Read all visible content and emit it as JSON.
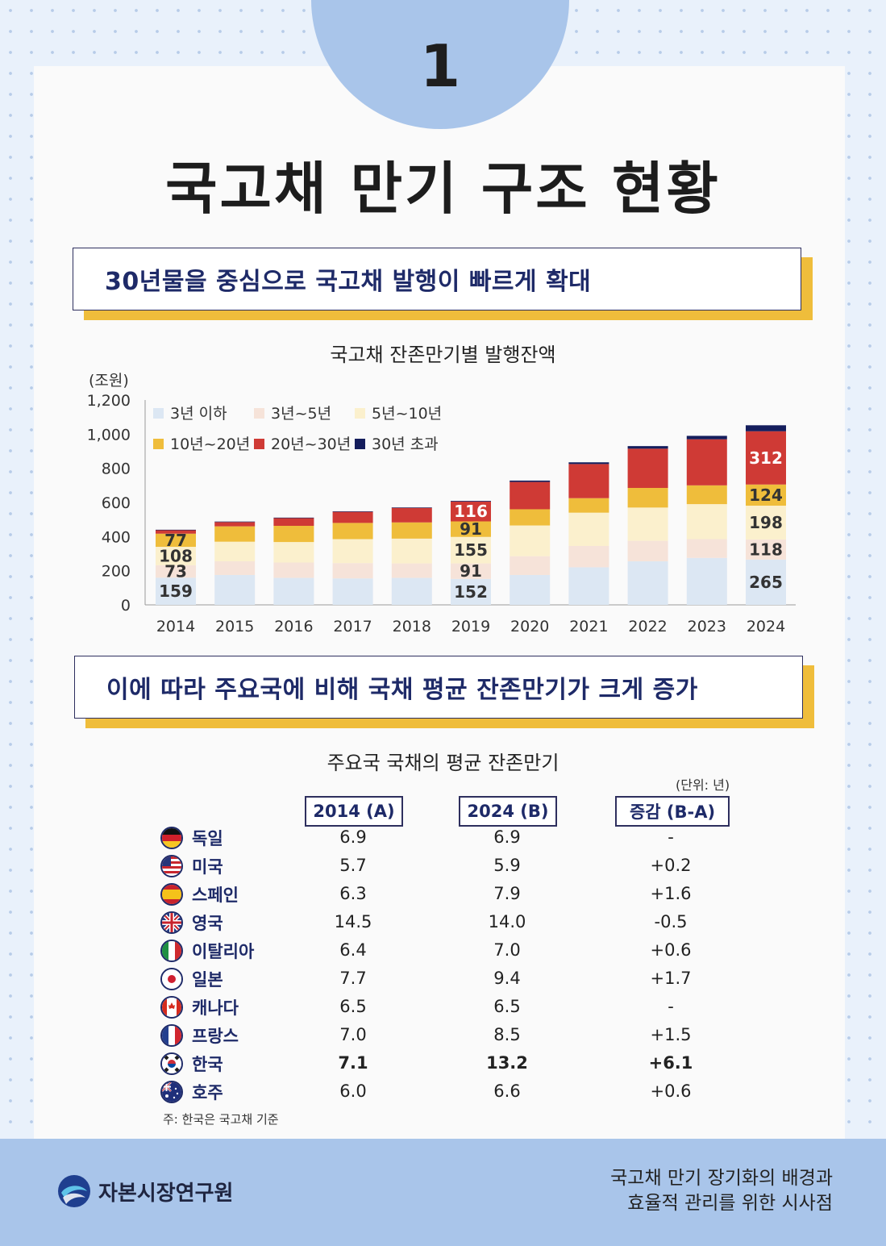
{
  "badge_number": "1",
  "page_title": "국고채 만기 구조 현황",
  "banner1": "30년물을 중심으로 국고채 발행이 빠르게 확대",
  "banner2": "이에 따라 주요국에 비해 국채 평균 잔존만기가 크게 증가",
  "chart_data": {
    "type": "bar",
    "stacked": true,
    "title": "국고채 잔존만기별 발행잔액",
    "unit_label": "(조원)",
    "categories": [
      "2014",
      "2015",
      "2016",
      "2017",
      "2018",
      "2019",
      "2020",
      "2021",
      "2022",
      "2023",
      "2024"
    ],
    "ylim": [
      0,
      1200
    ],
    "yticks": [
      0,
      200,
      400,
      600,
      800,
      1000,
      1200
    ],
    "ytick_labels": [
      "0",
      "200",
      "400",
      "600",
      "800",
      "1,000",
      "1,200"
    ],
    "legend_placement": "top-left",
    "series": [
      {
        "name": "3년 이하",
        "color": "#dce7f3",
        "values": [
          159,
          175,
          158,
          155,
          158,
          152,
          175,
          220,
          255,
          275,
          265
        ]
      },
      {
        "name": "3년~5년",
        "color": "#f6e3d9",
        "values": [
          73,
          80,
          90,
          90,
          85,
          91,
          110,
          125,
          120,
          110,
          118
        ]
      },
      {
        "name": "5년~10년",
        "color": "#fbf0cd",
        "values": [
          108,
          115,
          120,
          140,
          145,
          155,
          180,
          195,
          195,
          205,
          198
        ]
      },
      {
        "name": "10년~20년",
        "color": "#efbd3b",
        "values": [
          77,
          90,
          95,
          95,
          95,
          91,
          95,
          85,
          115,
          110,
          124
        ]
      },
      {
        "name": "20년~30년",
        "color": "#cf3a35",
        "values": [
          20,
          25,
          45,
          65,
          85,
          116,
          160,
          200,
          230,
          270,
          312
        ]
      },
      {
        "name": "30년 초과",
        "color": "#141d5c",
        "values": [
          3,
          3,
          3,
          3,
          3,
          4,
          8,
          10,
          15,
          20,
          35
        ]
      }
    ],
    "data_labels": {
      "2014": [
        "159",
        "73",
        "108",
        "77"
      ],
      "2019": [
        "152",
        "91",
        "155",
        "91",
        "116"
      ],
      "2024": [
        "265",
        "118",
        "198",
        "124",
        "312"
      ]
    }
  },
  "table": {
    "title": "주요국 국채의 평균 잔존만기",
    "unit": "(단위: 년)",
    "headers": [
      "2014 (A)",
      "2024 (B)",
      "증감 (B-A)"
    ],
    "rows": [
      {
        "country": "독일",
        "flag": "germany-flag",
        "a": "6.9",
        "b": "6.9",
        "diff": "-"
      },
      {
        "country": "미국",
        "flag": "usa-flag",
        "a": "5.7",
        "b": "5.9",
        "diff": "+0.2"
      },
      {
        "country": "스페인",
        "flag": "spain-flag",
        "a": "6.3",
        "b": "7.9",
        "diff": "+1.6"
      },
      {
        "country": "영국",
        "flag": "uk-flag",
        "a": "14.5",
        "b": "14.0",
        "diff": "-0.5"
      },
      {
        "country": "이탈리아",
        "flag": "italy-flag",
        "a": "6.4",
        "b": "7.0",
        "diff": "+0.6"
      },
      {
        "country": "일본",
        "flag": "japan-flag",
        "a": "7.7",
        "b": "9.4",
        "diff": "+1.7"
      },
      {
        "country": "캐나다",
        "flag": "canada-flag",
        "a": "6.5",
        "b": "6.5",
        "diff": "-"
      },
      {
        "country": "프랑스",
        "flag": "france-flag",
        "a": "7.0",
        "b": "8.5",
        "diff": "+1.5"
      },
      {
        "country": "한국",
        "flag": "korea-flag",
        "a": "7.1",
        "b": "13.2",
        "diff": "+6.1"
      },
      {
        "country": "호주",
        "flag": "australia-flag",
        "a": "6.0",
        "b": "6.6",
        "diff": "+0.6"
      }
    ],
    "note": "주: 한국은 국고채 기준"
  },
  "footer": {
    "org_name": "자본시장연구원",
    "report_title_line1": "국고채 만기 장기화의 배경과",
    "report_title_line2": "효율적 관리를 위한 시사점"
  }
}
